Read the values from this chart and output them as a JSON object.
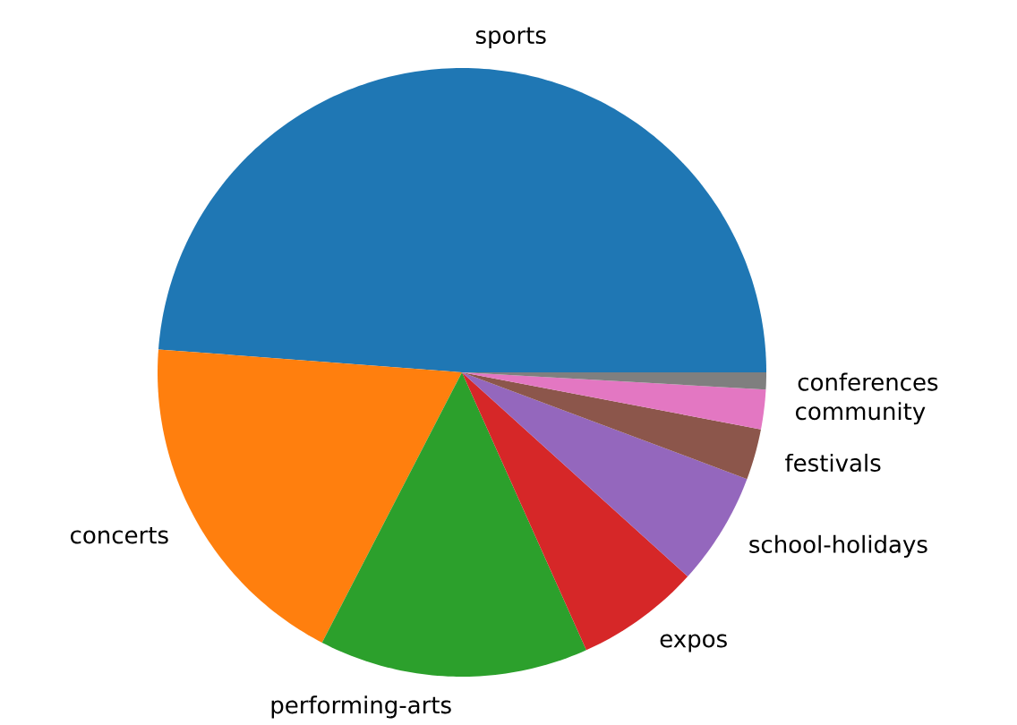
{
  "chart_data": {
    "type": "pie",
    "categories": [
      "sports",
      "concerts",
      "performing-arts",
      "expos",
      "school-holidays",
      "festivals",
      "community",
      "conferences"
    ],
    "values": [
      48.8,
      18.6,
      14.3,
      6.6,
      6.0,
      2.7,
      2.1,
      0.9
    ],
    "colors": [
      "#1f77b4",
      "#ff7f0e",
      "#2ca02c",
      "#d62728",
      "#9467bd",
      "#8c564b",
      "#e377c2",
      "#7f7f7f"
    ]
  }
}
